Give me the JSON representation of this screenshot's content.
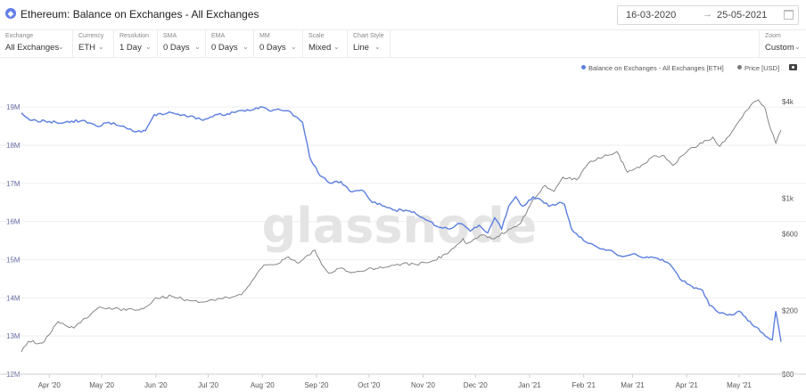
{
  "header": {
    "title": "Ethereum: Balance on Exchanges - All Exchanges",
    "asset_icon": "ethereum-icon",
    "date_start": "16-03-2020",
    "date_arrow": "→",
    "date_end": "25-05-2021"
  },
  "filters": [
    {
      "label": "Exchange",
      "value": "All Exchanges"
    },
    {
      "label": "Currency",
      "value": "ETH"
    },
    {
      "label": "Resolution",
      "value": "1 Day"
    },
    {
      "label": "SMA",
      "value": "0 Days"
    },
    {
      "label": "EMA",
      "value": "0 Days"
    },
    {
      "label": "MM",
      "value": "0 Days"
    },
    {
      "label": "Scale",
      "value": "Mixed"
    },
    {
      "label": "Chart Style",
      "value": "Line"
    }
  ],
  "zoom": {
    "label": "Zoom",
    "value": "Custom"
  },
  "watermark": "glassnode",
  "colors": {
    "balance": "#5b7fe0",
    "price": "#7a7a7a",
    "grid": "#eeeeee"
  },
  "chart_data": {
    "type": "line",
    "x_start": "2020-03-16",
    "x_end": "2021-05-25",
    "x_ticks": [
      {
        "label": "Apr '20",
        "date": "2020-04-01"
      },
      {
        "label": "May '20",
        "date": "2020-05-01"
      },
      {
        "label": "Jun '20",
        "date": "2020-06-01"
      },
      {
        "label": "Jul '20",
        "date": "2020-07-01"
      },
      {
        "label": "Aug '20",
        "date": "2020-08-01"
      },
      {
        "label": "Sep '20",
        "date": "2020-09-01"
      },
      {
        "label": "Oct '20",
        "date": "2020-10-01"
      },
      {
        "label": "Nov '20",
        "date": "2020-11-01"
      },
      {
        "label": "Dec '20",
        "date": "2020-12-01"
      },
      {
        "label": "Jan '21",
        "date": "2021-01-01"
      },
      {
        "label": "Feb '21",
        "date": "2021-02-01"
      },
      {
        "label": "Mar '21",
        "date": "2021-03-01"
      },
      {
        "label": "Apr '21",
        "date": "2021-04-01"
      },
      {
        "label": "May '21",
        "date": "2021-05-01"
      }
    ],
    "y_left": {
      "ylim": [
        12000000,
        19400000
      ],
      "scale": "linear",
      "ticks": [
        {
          "label": "12M",
          "value": 12000000
        },
        {
          "label": "13M",
          "value": 13000000
        },
        {
          "label": "14M",
          "value": 14000000
        },
        {
          "label": "15M",
          "value": 15000000
        },
        {
          "label": "16M",
          "value": 16000000
        },
        {
          "label": "17M",
          "value": 17000000
        },
        {
          "label": "18M",
          "value": 18000000
        },
        {
          "label": "19M",
          "value": 19000000
        }
      ]
    },
    "y_right": {
      "ylim": [
        80,
        4600
      ],
      "scale": "log",
      "ticks": [
        {
          "label": "$80",
          "value": 80
        },
        {
          "label": "$200",
          "value": 200
        },
        {
          "label": "$600",
          "value": 600
        },
        {
          "label": "$1k",
          "value": 1000
        },
        {
          "label": "$4k",
          "value": 4000
        }
      ]
    },
    "series": [
      {
        "name": "Balance on Exchanges - All Exchanges [ETH]",
        "axis": "left",
        "points": [
          [
            "2020-03-16",
            18850000
          ],
          [
            "2020-03-22",
            18650000
          ],
          [
            "2020-04-01",
            18620000
          ],
          [
            "2020-04-10",
            18600000
          ],
          [
            "2020-04-20",
            18650000
          ],
          [
            "2020-04-28",
            18500000
          ],
          [
            "2020-05-05",
            18600000
          ],
          [
            "2020-05-12",
            18500000
          ],
          [
            "2020-05-20",
            18350000
          ],
          [
            "2020-05-26",
            18380000
          ],
          [
            "2020-05-31",
            18800000
          ],
          [
            "2020-06-10",
            18850000
          ],
          [
            "2020-06-20",
            18750000
          ],
          [
            "2020-06-28",
            18650000
          ],
          [
            "2020-07-05",
            18800000
          ],
          [
            "2020-07-12",
            18820000
          ],
          [
            "2020-07-18",
            18900000
          ],
          [
            "2020-07-26",
            18920000
          ],
          [
            "2020-08-01",
            19000000
          ],
          [
            "2020-08-05",
            18900000
          ],
          [
            "2020-08-10",
            18950000
          ],
          [
            "2020-08-16",
            18900000
          ],
          [
            "2020-08-20",
            18750000
          ],
          [
            "2020-08-24",
            18600000
          ],
          [
            "2020-08-28",
            17700000
          ],
          [
            "2020-09-03",
            17200000
          ],
          [
            "2020-09-10",
            17000000
          ],
          [
            "2020-09-15",
            17050000
          ],
          [
            "2020-09-20",
            16800000
          ],
          [
            "2020-09-28",
            16800000
          ],
          [
            "2020-10-03",
            16500000
          ],
          [
            "2020-10-10",
            16400000
          ],
          [
            "2020-10-16",
            16300000
          ],
          [
            "2020-10-22",
            16300000
          ],
          [
            "2020-10-28",
            16200000
          ],
          [
            "2020-11-05",
            16000000
          ],
          [
            "2020-11-10",
            15850000
          ],
          [
            "2020-11-16",
            15800000
          ],
          [
            "2020-11-22",
            15950000
          ],
          [
            "2020-11-28",
            15750000
          ],
          [
            "2020-12-03",
            15900000
          ],
          [
            "2020-12-08",
            15700000
          ],
          [
            "2020-12-12",
            16100000
          ],
          [
            "2020-12-16",
            15800000
          ],
          [
            "2020-12-20",
            16400000
          ],
          [
            "2020-12-24",
            16650000
          ],
          [
            "2020-12-28",
            16400000
          ],
          [
            "2021-01-03",
            16650000
          ],
          [
            "2021-01-08",
            16550000
          ],
          [
            "2021-01-12",
            16400000
          ],
          [
            "2021-01-18",
            16500000
          ],
          [
            "2021-01-21",
            16450000
          ],
          [
            "2021-01-25",
            15800000
          ],
          [
            "2021-02-01",
            15500000
          ],
          [
            "2021-02-08",
            15350000
          ],
          [
            "2021-02-15",
            15250000
          ],
          [
            "2021-02-22",
            15100000
          ],
          [
            "2021-03-01",
            15150000
          ],
          [
            "2021-03-08",
            15050000
          ],
          [
            "2021-03-14",
            15050000
          ],
          [
            "2021-03-22",
            14900000
          ],
          [
            "2021-03-28",
            14500000
          ],
          [
            "2021-04-04",
            14300000
          ],
          [
            "2021-04-10",
            14200000
          ],
          [
            "2021-04-14",
            13800000
          ],
          [
            "2021-04-20",
            13600000
          ],
          [
            "2021-04-27",
            13550000
          ],
          [
            "2021-05-01",
            13650000
          ],
          [
            "2021-05-06",
            13400000
          ],
          [
            "2021-05-12",
            13200000
          ],
          [
            "2021-05-16",
            13000000
          ],
          [
            "2021-05-20",
            12900000
          ],
          [
            "2021-05-22",
            13650000
          ],
          [
            "2021-05-25",
            12850000
          ]
        ]
      },
      {
        "name": "Price [USD]",
        "axis": "right",
        "points": [
          [
            "2020-03-16",
            110
          ],
          [
            "2020-03-20",
            128
          ],
          [
            "2020-03-28",
            125
          ],
          [
            "2020-04-06",
            170
          ],
          [
            "2020-04-15",
            155
          ],
          [
            "2020-04-25",
            190
          ],
          [
            "2020-04-30",
            210
          ],
          [
            "2020-05-08",
            205
          ],
          [
            "2020-05-15",
            200
          ],
          [
            "2020-05-25",
            205
          ],
          [
            "2020-06-01",
            240
          ],
          [
            "2020-06-10",
            245
          ],
          [
            "2020-06-20",
            230
          ],
          [
            "2020-06-28",
            225
          ],
          [
            "2020-07-05",
            230
          ],
          [
            "2020-07-12",
            240
          ],
          [
            "2020-07-20",
            250
          ],
          [
            "2020-07-26",
            305
          ],
          [
            "2020-08-02",
            385
          ],
          [
            "2020-08-10",
            390
          ],
          [
            "2020-08-16",
            430
          ],
          [
            "2020-08-22",
            395
          ],
          [
            "2020-08-31",
            475
          ],
          [
            "2020-09-04",
            385
          ],
          [
            "2020-09-08",
            340
          ],
          [
            "2020-09-14",
            365
          ],
          [
            "2020-09-22",
            345
          ],
          [
            "2020-09-30",
            360
          ],
          [
            "2020-10-10",
            370
          ],
          [
            "2020-10-20",
            390
          ],
          [
            "2020-10-28",
            385
          ],
          [
            "2020-11-05",
            400
          ],
          [
            "2020-11-15",
            450
          ],
          [
            "2020-11-24",
            560
          ],
          [
            "2020-11-26",
            520
          ],
          [
            "2020-12-05",
            590
          ],
          [
            "2020-12-12",
            560
          ],
          [
            "2020-12-20",
            640
          ],
          [
            "2020-12-27",
            700
          ],
          [
            "2021-01-03",
            980
          ],
          [
            "2021-01-10",
            1200
          ],
          [
            "2021-01-15",
            1100
          ],
          [
            "2021-01-20",
            1350
          ],
          [
            "2021-01-28",
            1300
          ],
          [
            "2021-02-05",
            1700
          ],
          [
            "2021-02-12",
            1800
          ],
          [
            "2021-02-20",
            1950
          ],
          [
            "2021-02-26",
            1450
          ],
          [
            "2021-03-05",
            1550
          ],
          [
            "2021-03-12",
            1800
          ],
          [
            "2021-03-18",
            1850
          ],
          [
            "2021-03-24",
            1600
          ],
          [
            "2021-04-02",
            2000
          ],
          [
            "2021-04-10",
            2200
          ],
          [
            "2021-04-16",
            2400
          ],
          [
            "2021-04-20",
            2100
          ],
          [
            "2021-04-28",
            2700
          ],
          [
            "2021-05-04",
            3400
          ],
          [
            "2021-05-10",
            4000
          ],
          [
            "2021-05-12",
            4100
          ],
          [
            "2021-05-14",
            3800
          ],
          [
            "2021-05-16",
            3600
          ],
          [
            "2021-05-19",
            2700
          ],
          [
            "2021-05-22",
            2200
          ],
          [
            "2021-05-25",
            2650
          ]
        ]
      }
    ],
    "legend_position": "top-right",
    "grid": true
  }
}
